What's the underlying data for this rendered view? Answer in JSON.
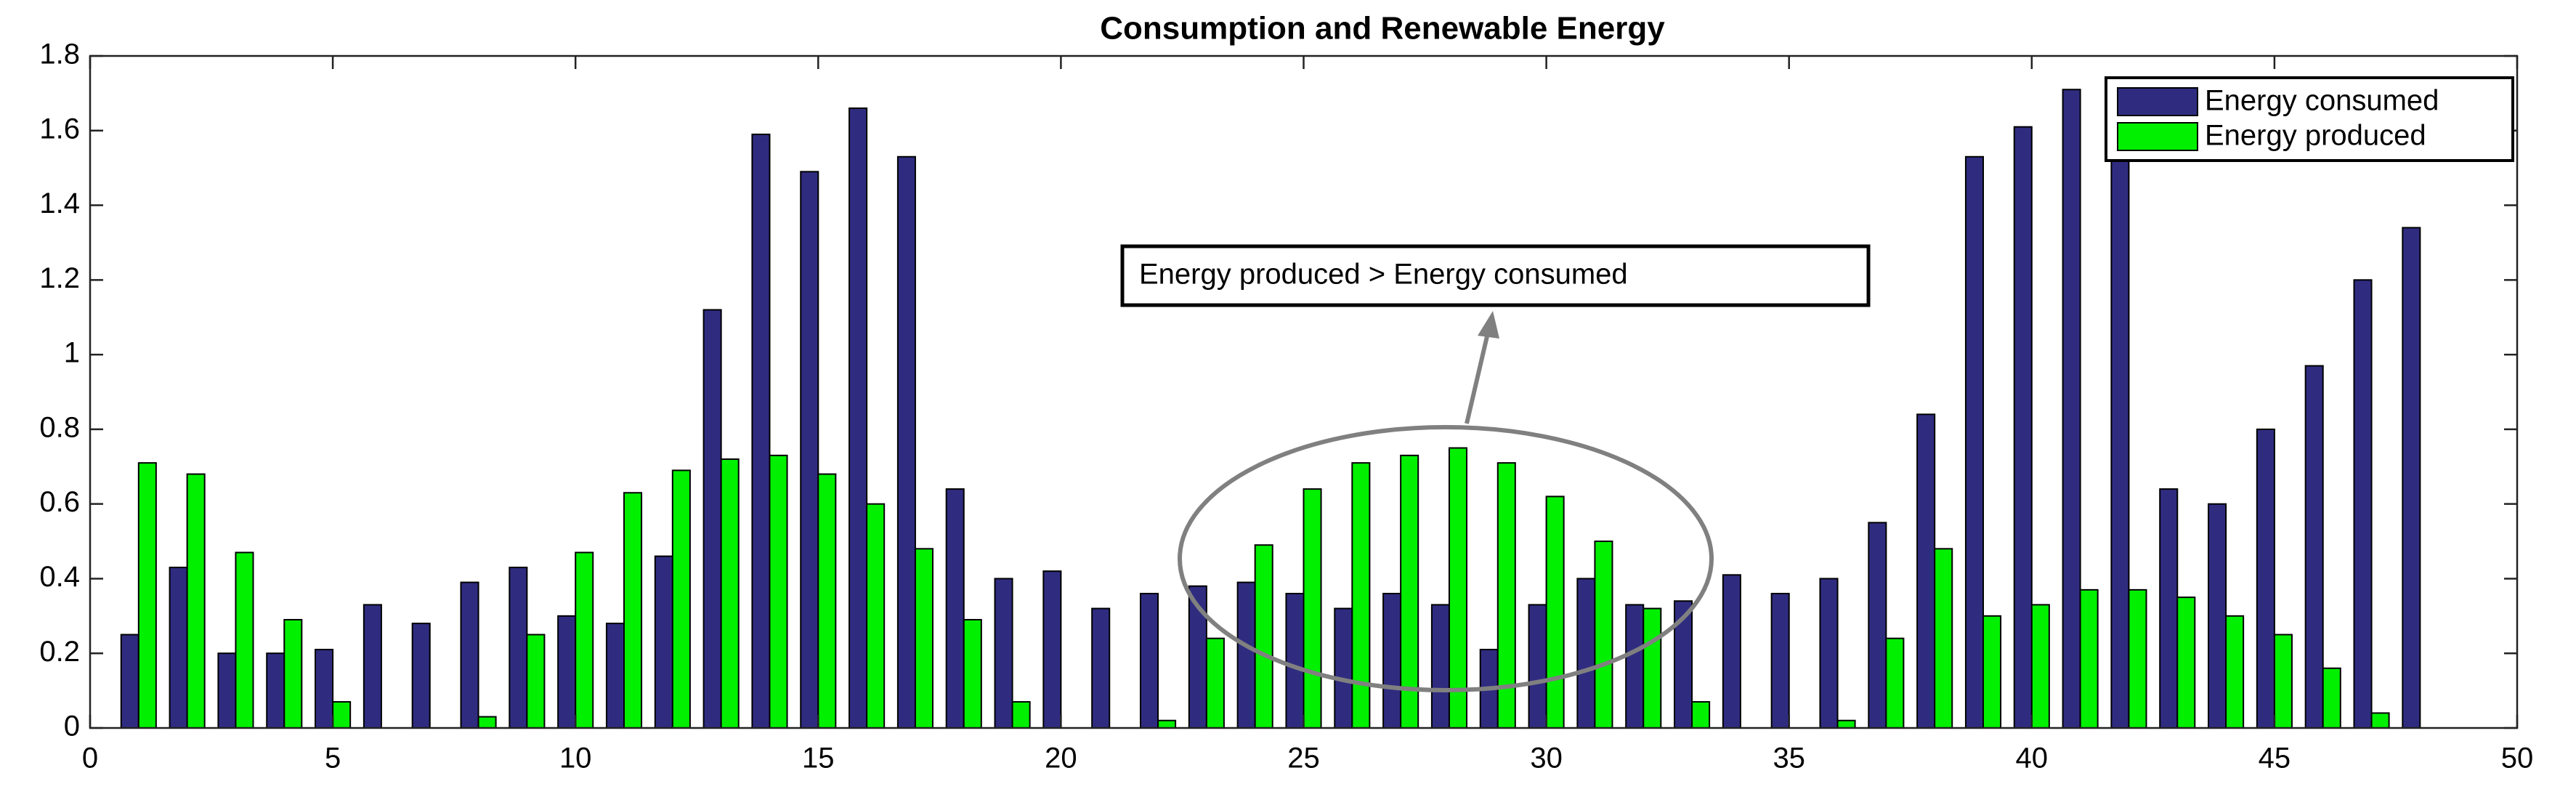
{
  "chart_data": {
    "type": "bar",
    "title": "Consumption and Renewable Energy",
    "x": [
      1,
      2,
      3,
      4,
      5,
      6,
      7,
      8,
      9,
      10,
      11,
      12,
      13,
      14,
      15,
      16,
      17,
      18,
      19,
      20,
      21,
      22,
      23,
      24,
      25,
      26,
      27,
      28,
      29,
      30,
      31,
      32,
      33,
      34,
      35,
      36,
      37,
      38,
      39,
      40,
      41,
      42,
      43,
      44,
      45,
      46,
      47,
      48
    ],
    "series": [
      {
        "name": "Energy consumed",
        "color": "#2f2c80",
        "values": [
          0.25,
          0.43,
          0.2,
          0.2,
          0.21,
          0.33,
          0.28,
          0.39,
          0.43,
          0.3,
          0.28,
          0.46,
          1.12,
          1.59,
          1.49,
          1.66,
          1.53,
          0.64,
          0.4,
          0.42,
          0.32,
          0.36,
          0.38,
          0.39,
          0.36,
          0.32,
          0.36,
          0.33,
          0.21,
          0.33,
          0.4,
          0.33,
          0.34,
          0.41,
          0.36,
          0.4,
          0.55,
          0.84,
          1.53,
          1.61,
          1.71,
          1.58,
          0.64,
          0.6,
          0.8,
          0.97,
          1.2,
          1.34
        ]
      },
      {
        "name": "Energy produced",
        "color": "#00f000",
        "values": [
          0.71,
          0.68,
          0.47,
          0.29,
          0.07,
          0,
          0,
          0.03,
          0.25,
          0.47,
          0.63,
          0.69,
          0.72,
          0.73,
          0.68,
          0.6,
          0.48,
          0.29,
          0.07,
          0,
          0,
          0.02,
          0.24,
          0.49,
          0.64,
          0.71,
          0.73,
          0.75,
          0.71,
          0.62,
          0.5,
          0.32,
          0.07,
          0,
          0,
          0.02,
          0.24,
          0.48,
          0.3,
          0.33,
          0.37,
          0.37,
          0.35,
          0.3,
          0.25,
          0.16,
          0.04,
          0
        ]
      }
    ],
    "xlim": [
      0,
      50
    ],
    "xticks": [
      0,
      5,
      10,
      15,
      20,
      25,
      30,
      35,
      40,
      45,
      50
    ],
    "ylim": [
      0,
      1.8
    ],
    "yticks": [
      0,
      0.2,
      0.4,
      0.6,
      0.8,
      1,
      1.2,
      1.4,
      1.6,
      1.8
    ],
    "legend": "upper right",
    "annotation": "Energy produced > Energy consumed"
  }
}
